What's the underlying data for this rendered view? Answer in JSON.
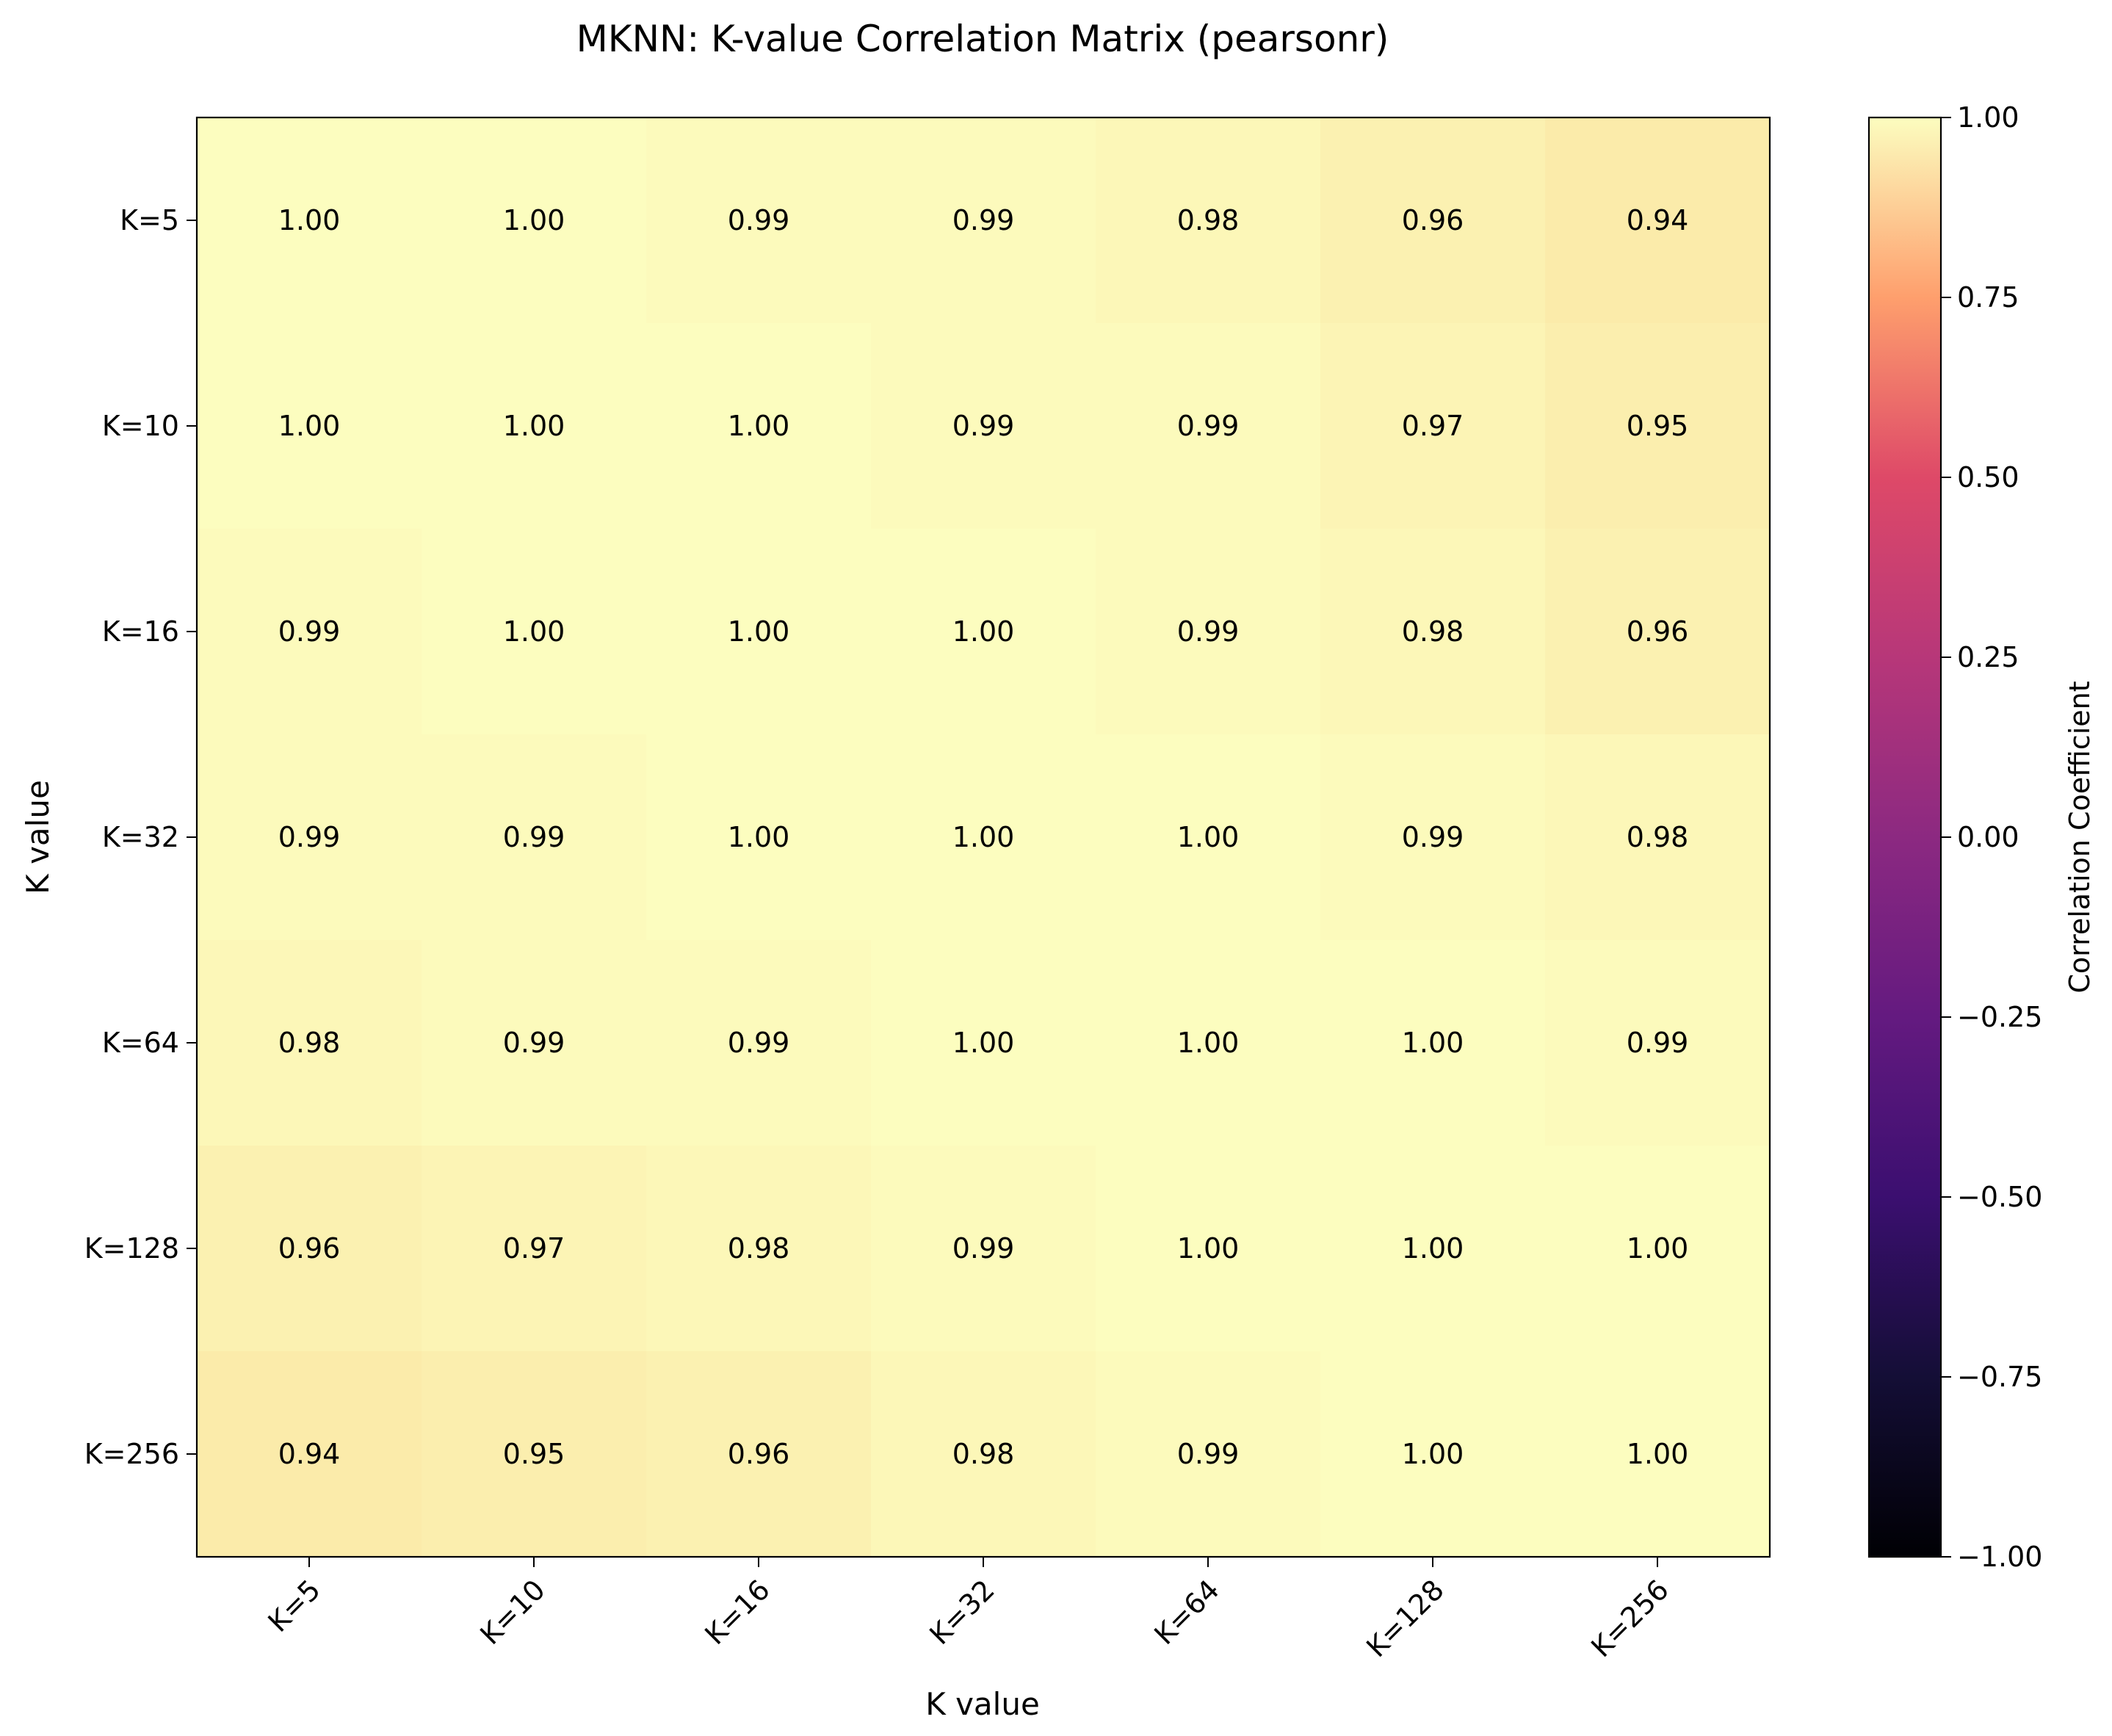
{
  "chart_data": {
    "type": "heatmap",
    "title": "MKNN: K-value Correlation Matrix (pearsonr)",
    "xlabel": "K value",
    "ylabel": "K value",
    "x_categories": [
      "K=5",
      "K=10",
      "K=16",
      "K=32",
      "K=64",
      "K=128",
      "K=256"
    ],
    "y_categories": [
      "K=5",
      "K=10",
      "K=16",
      "K=32",
      "K=64",
      "K=128",
      "K=256"
    ],
    "values": [
      [
        1.0,
        1.0,
        0.99,
        0.99,
        0.98,
        0.96,
        0.94
      ],
      [
        1.0,
        1.0,
        1.0,
        0.99,
        0.99,
        0.97,
        0.95
      ],
      [
        0.99,
        1.0,
        1.0,
        1.0,
        0.99,
        0.98,
        0.96
      ],
      [
        0.99,
        0.99,
        1.0,
        1.0,
        1.0,
        0.99,
        0.98
      ],
      [
        0.98,
        0.99,
        0.99,
        1.0,
        1.0,
        1.0,
        0.99
      ],
      [
        0.96,
        0.97,
        0.98,
        0.99,
        1.0,
        1.0,
        1.0
      ],
      [
        0.94,
        0.95,
        0.96,
        0.98,
        0.99,
        1.0,
        1.0
      ]
    ],
    "cell_labels": [
      [
        "1.00",
        "1.00",
        "0.99",
        "0.99",
        "0.98",
        "0.96",
        "0.94"
      ],
      [
        "1.00",
        "1.00",
        "1.00",
        "0.99",
        "0.99",
        "0.97",
        "0.95"
      ],
      [
        "0.99",
        "1.00",
        "1.00",
        "1.00",
        "0.99",
        "0.98",
        "0.96"
      ],
      [
        "0.99",
        "0.99",
        "1.00",
        "1.00",
        "1.00",
        "0.99",
        "0.98"
      ],
      [
        "0.98",
        "0.99",
        "0.99",
        "1.00",
        "1.00",
        "1.00",
        "0.99"
      ],
      [
        "0.96",
        "0.97",
        "0.98",
        "0.99",
        "1.00",
        "1.00",
        "1.00"
      ],
      [
        "0.94",
        "0.95",
        "0.96",
        "0.98",
        "0.99",
        "1.00",
        "1.00"
      ]
    ],
    "colormap": "magma",
    "colorbar": {
      "label": "Correlation Coefficient",
      "vmin": -1.0,
      "vmax": 1.0,
      "ticks": [
        -1.0,
        -0.75,
        -0.5,
        -0.25,
        0.0,
        0.25,
        0.5,
        0.75,
        1.0
      ],
      "tick_labels": [
        "−1.00",
        "−0.75",
        "−0.50",
        "−0.25",
        "0.00",
        "0.25",
        "0.50",
        "0.75",
        "1.00"
      ]
    },
    "grid": false
  }
}
